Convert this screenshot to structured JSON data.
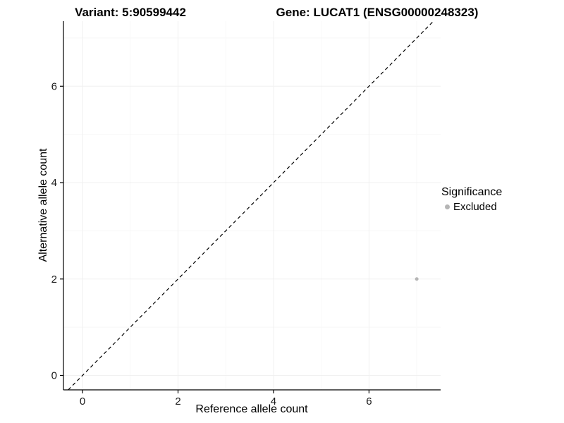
{
  "titles": {
    "variant": "Variant: 5:90599442",
    "gene": "Gene: LUCAT1 (ENSG00000248323)"
  },
  "chart_data": {
    "type": "scatter",
    "title": "Variant: 5:90599442   Gene: LUCAT1 (ENSG00000248323)",
    "xlabel": "Reference allele count",
    "ylabel": "Alternative allele count",
    "xlim": [
      -0.4,
      7.5
    ],
    "ylim": [
      -0.3,
      7.35
    ],
    "xticks": [
      0,
      2,
      4,
      6
    ],
    "yticks": [
      0,
      2,
      4,
      6
    ],
    "xminor": [
      1,
      3,
      5,
      7
    ],
    "yminor": [
      1,
      3,
      5,
      7
    ],
    "grid": true,
    "identity_line": {
      "style": "dashed",
      "color": "#000000",
      "slope": 1,
      "intercept": 0
    },
    "series": [
      {
        "name": "Excluded",
        "color": "#b5b5b5",
        "points": [
          {
            "x": 7,
            "y": 2
          }
        ]
      }
    ],
    "legend": {
      "title": "Significance",
      "position": "right",
      "items": [
        {
          "label": "Excluded",
          "color": "#b5b5b5"
        }
      ]
    }
  }
}
